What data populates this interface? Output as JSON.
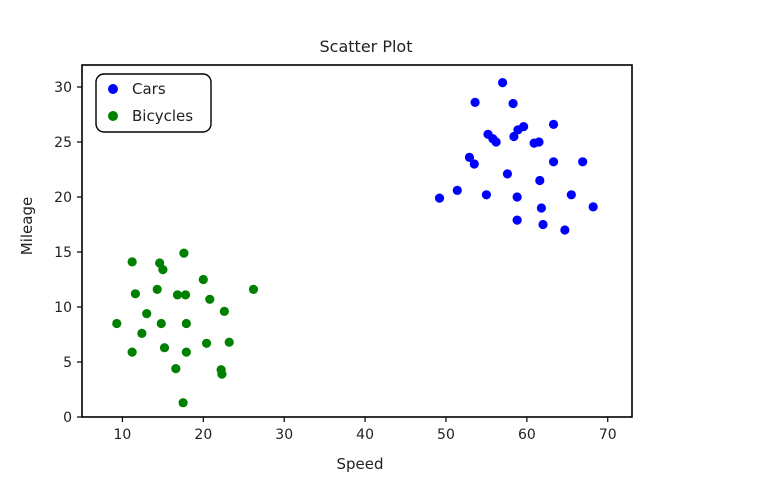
{
  "chart_data": {
    "type": "scatter",
    "title": "Scatter Plot",
    "xlabel": "Speed",
    "ylabel": "Mileage",
    "xlim": [
      5,
      73
    ],
    "ylim": [
      0,
      32
    ],
    "xticks": [
      10,
      20,
      30,
      40,
      50,
      60,
      70
    ],
    "yticks": [
      0,
      5,
      10,
      15,
      20,
      25,
      30
    ],
    "grid": false,
    "legend_position": "top-left",
    "series": [
      {
        "name": "Cars",
        "color": "#0000ff",
        "points": [
          [
            57.0,
            30.4
          ],
          [
            53.6,
            28.6
          ],
          [
            58.3,
            28.5
          ],
          [
            63.3,
            26.6
          ],
          [
            59.6,
            26.4
          ],
          [
            58.9,
            26.1
          ],
          [
            55.2,
            25.7
          ],
          [
            58.4,
            25.5
          ],
          [
            55.8,
            25.3
          ],
          [
            56.2,
            25.0
          ],
          [
            61.5,
            25.0
          ],
          [
            60.9,
            24.9
          ],
          [
            52.9,
            23.6
          ],
          [
            53.5,
            23.0
          ],
          [
            63.3,
            23.2
          ],
          [
            66.9,
            23.2
          ],
          [
            57.6,
            22.1
          ],
          [
            61.6,
            21.5
          ],
          [
            51.4,
            20.6
          ],
          [
            55.0,
            20.2
          ],
          [
            65.5,
            20.2
          ],
          [
            49.2,
            19.9
          ],
          [
            58.8,
            20.0
          ],
          [
            68.2,
            19.1
          ],
          [
            61.8,
            19.0
          ],
          [
            58.8,
            17.9
          ],
          [
            62.0,
            17.5
          ],
          [
            64.7,
            17.0
          ]
        ]
      },
      {
        "name": "Bicycles",
        "color": "#008000",
        "points": [
          [
            17.6,
            14.9
          ],
          [
            11.2,
            14.1
          ],
          [
            14.6,
            14.0
          ],
          [
            15.0,
            13.4
          ],
          [
            20.0,
            12.5
          ],
          [
            26.2,
            11.6
          ],
          [
            14.3,
            11.6
          ],
          [
            11.6,
            11.2
          ],
          [
            16.8,
            11.1
          ],
          [
            17.8,
            11.1
          ],
          [
            20.8,
            10.7
          ],
          [
            22.6,
            9.6
          ],
          [
            13.0,
            9.4
          ],
          [
            9.3,
            8.5
          ],
          [
            14.8,
            8.5
          ],
          [
            17.9,
            8.5
          ],
          [
            12.4,
            7.6
          ],
          [
            23.2,
            6.8
          ],
          [
            20.4,
            6.7
          ],
          [
            15.2,
            6.3
          ],
          [
            11.2,
            5.9
          ],
          [
            17.9,
            5.9
          ],
          [
            16.6,
            4.4
          ],
          [
            22.2,
            4.3
          ],
          [
            22.3,
            3.9
          ],
          [
            17.5,
            1.3
          ]
        ]
      }
    ]
  }
}
